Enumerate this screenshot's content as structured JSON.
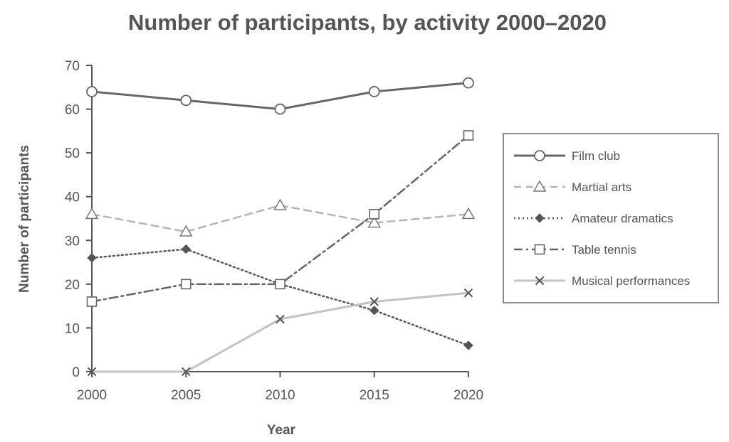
{
  "chart_data": {
    "type": "line",
    "title": "Number of participants, by activity 2000–2020",
    "xlabel": "Year",
    "ylabel": "Number of participants",
    "categories": [
      "2000",
      "2005",
      "2010",
      "2015",
      "2020"
    ],
    "ylim": [
      0,
      70
    ],
    "yticks": [
      "0",
      "10",
      "20",
      "30",
      "40",
      "50",
      "60",
      "70"
    ],
    "grid": false,
    "legend_position": "right",
    "series": [
      {
        "name": "Film club",
        "values": [
          64,
          62,
          60,
          64,
          66
        ],
        "color": "#666666",
        "marker": "circle",
        "style": "solid"
      },
      {
        "name": "Martial arts",
        "values": [
          36,
          32,
          38,
          34,
          36
        ],
        "color": "#b5b5b5",
        "marker": "triangle",
        "style": "dashed"
      },
      {
        "name": "Amateur dramatics",
        "values": [
          26,
          28,
          20,
          14,
          6
        ],
        "color": "#555555",
        "marker": "diamond",
        "style": "dotted"
      },
      {
        "name": "Table tennis",
        "values": [
          16,
          20,
          20,
          36,
          54
        ],
        "color": "#666666",
        "marker": "square",
        "style": "dashdot"
      },
      {
        "name": "Musical performances",
        "values": [
          0,
          0,
          12,
          16,
          18
        ],
        "color": "#c2c2c2",
        "marker": "x",
        "style": "solid"
      }
    ]
  }
}
